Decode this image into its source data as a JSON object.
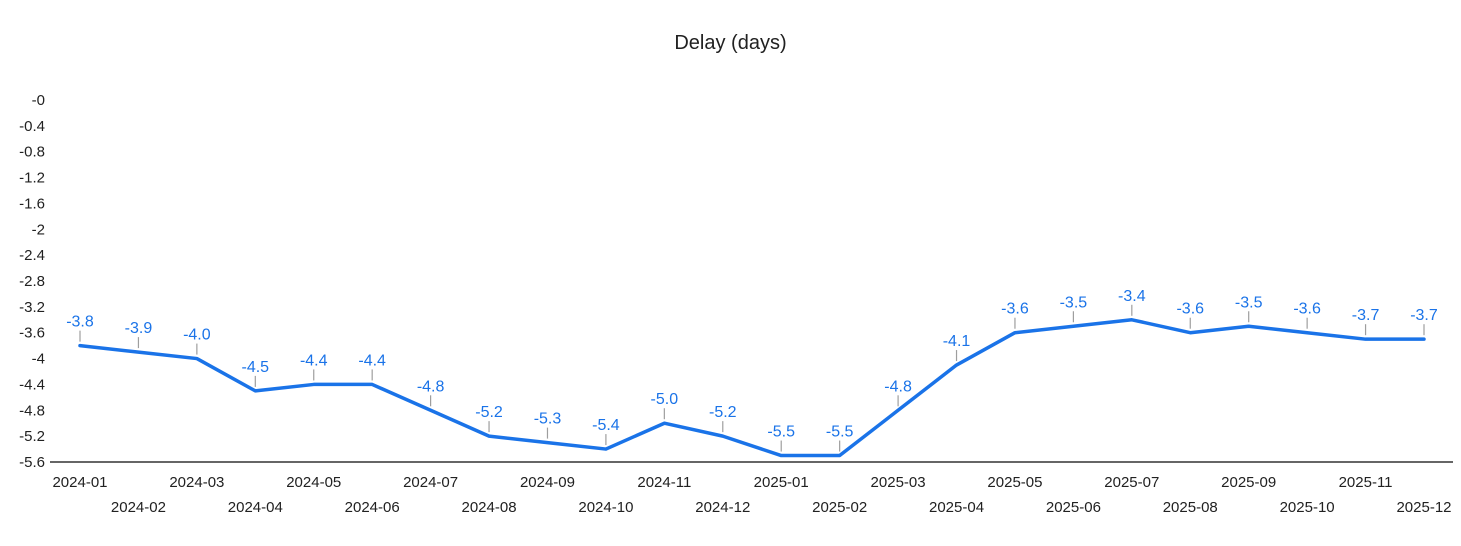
{
  "chart_data": {
    "type": "line",
    "title": "Delay (days)",
    "x": [
      "2024-01",
      "2024-02",
      "2024-03",
      "2024-04",
      "2024-05",
      "2024-06",
      "2024-07",
      "2024-08",
      "2024-09",
      "2024-10",
      "2024-11",
      "2024-12",
      "2025-01",
      "2025-02",
      "2025-03",
      "2025-04",
      "2025-05",
      "2025-06",
      "2025-07",
      "2025-08",
      "2025-09",
      "2025-10",
      "2025-11",
      "2025-12"
    ],
    "series": [
      {
        "name": "Delay (days)",
        "values": [
          -3.8,
          -3.9,
          -4.0,
          -4.5,
          -4.4,
          -4.4,
          -4.8,
          -5.2,
          -5.3,
          -5.4,
          -5.0,
          -5.2,
          -5.5,
          -5.5,
          -4.8,
          -4.1,
          -3.6,
          -3.5,
          -3.4,
          -3.6,
          -3.5,
          -3.6,
          -3.7,
          -3.7
        ],
        "data_labels": [
          "-3.8",
          "-3.9",
          "-4.0",
          "-4.5",
          "-4.4",
          "-4.4",
          "-4.8",
          "-5.2",
          "-5.3",
          "-5.4",
          "-5.0",
          "-5.2",
          "-5.5",
          "-5.5",
          "-4.8",
          "-4.1",
          "-3.6",
          "-3.5",
          "-3.4",
          "-3.6",
          "-3.5",
          "-3.6",
          "-3.7",
          "-3.7"
        ]
      }
    ],
    "y_tick_labels": [
      "-0",
      "-0.4",
      "-0.8",
      "-1.2",
      "-1.6",
      "-2",
      "-2.4",
      "-2.8",
      "-3.2",
      "-3.6",
      "-4",
      "-4.4",
      "-4.8",
      "-5.2",
      "-5.6"
    ],
    "ylim": [
      -5.6,
      0
    ],
    "xlabel": "",
    "ylabel": "",
    "grid": false,
    "legend_position": "none",
    "x_tick_stagger": true,
    "colors": {
      "series_line": "#1a73e8",
      "data_label": "#1a73e8",
      "leader_tick": "#9e9e9e",
      "axis_line": "#333333",
      "axis_text": "#212121"
    }
  }
}
